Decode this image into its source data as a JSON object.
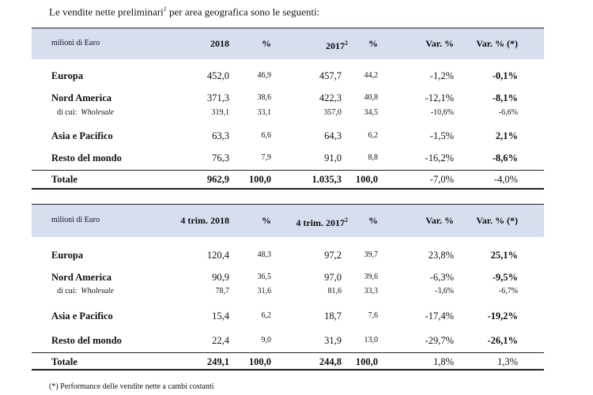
{
  "intro": {
    "text": "Le vendite nette preliminari",
    "superscript": "1",
    "text_after": " per area geografica sono le seguenti:"
  },
  "tables": [
    {
      "header": [
        "milioni di Euro",
        "2018",
        "%",
        "2017",
        "%",
        "Var. %",
        "Var. % (*)"
      ],
      "header_superscript": "2",
      "rows": [
        {
          "label": "Europa",
          "values": [
            "452,0",
            "46,9",
            "457,7",
            "44,2",
            "-1,2%",
            "-0,1%"
          ]
        },
        {
          "label": "Nord America",
          "values": [
            "371,3",
            "38,6",
            "422,3",
            "40,8",
            "-12,1%",
            "-8,1%"
          ]
        },
        {
          "prefix": "di cui:",
          "label": "Wholesale",
          "values": [
            "319,1",
            "33,1",
            "357,0",
            "34,5",
            "-10,6%",
            "-6,6%"
          ]
        },
        {
          "label": "Asia e Pacifico",
          "values": [
            "63,3",
            "6,6",
            "64,3",
            "6,2",
            "-1,5%",
            "2,1%"
          ]
        },
        {
          "label": "Resto del mondo",
          "values": [
            "76,3",
            "7,9",
            "91,0",
            "8,8",
            "-16,2%",
            "-8,6%"
          ]
        },
        {
          "label": "Totale",
          "values": [
            "962,9",
            "100,0",
            "1.035,3",
            "100,0",
            "-7,0%",
            "-4,0%"
          ]
        }
      ]
    },
    {
      "header": [
        "milioni di Euro",
        "4 trim. 2018",
        "%",
        "4 trim. 2017",
        "%",
        "Var. %",
        "Var. % (*)"
      ],
      "header_superscript": "2",
      "rows": [
        {
          "label": "Europa",
          "values": [
            "120,4",
            "48,3",
            "97,2",
            "39,7",
            "23,8%",
            "25,1%"
          ]
        },
        {
          "label": "Nord America",
          "values": [
            "90,9",
            "36,5",
            "97,0",
            "39,6",
            "-6,3%",
            "-9,5%"
          ]
        },
        {
          "prefix": "di cui:",
          "label": "Wholesale",
          "values": [
            "78,7",
            "31,6",
            "81,6",
            "33,3",
            "-3,6%",
            "-6,7%"
          ]
        },
        {
          "label": "Asia e Pacifico",
          "values": [
            "15,4",
            "6,2",
            "18,7",
            "7,6",
            "-17,4%",
            "-19,2%"
          ]
        },
        {
          "label": "Resto del mondo",
          "values": [
            "22,4",
            "9,0",
            "31,9",
            "13,0",
            "-29,7%",
            "-26,1%"
          ]
        },
        {
          "label": "Totale",
          "values": [
            "249,1",
            "100,0",
            "244,8",
            "100,0",
            "1,8%",
            "1,3%"
          ]
        }
      ]
    }
  ],
  "footnote": "(*) Performance delle vendite nette a cambi costanti"
}
